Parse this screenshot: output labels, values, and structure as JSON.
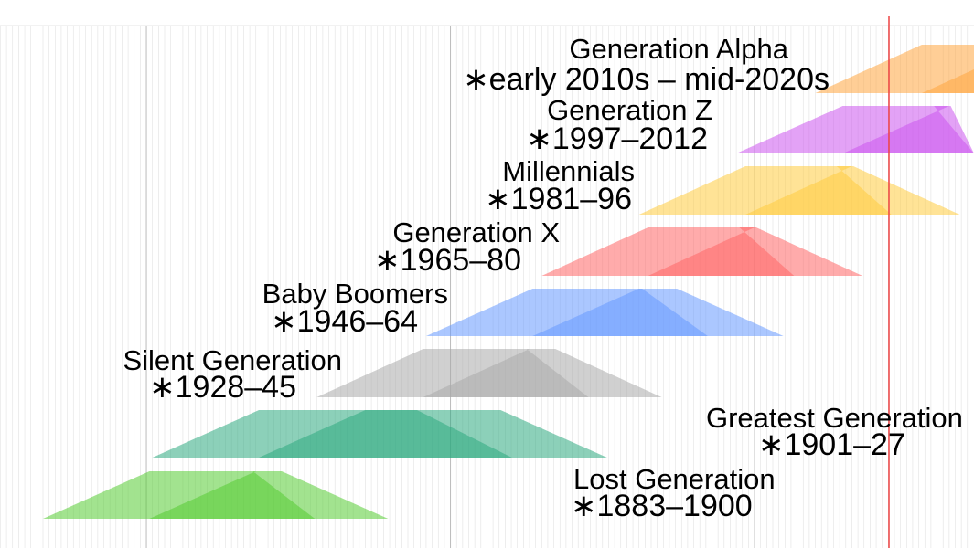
{
  "generations": [
    {
      "name": "Generation Alpha",
      "years": "∗early 2010s – mid-2020s",
      "color": "#ffa640",
      "start_year": 2010,
      "end_year": 2025
    },
    {
      "name": "Generation Z",
      "years": "∗1997–2012",
      "color": "#cc55ee",
      "start_year": 1997,
      "end_year": 2012
    },
    {
      "name": "Millennials",
      "years": "∗1981–96",
      "color": "#ffcc40",
      "start_year": 1981,
      "end_year": 1996
    },
    {
      "name": "Generation X",
      "years": "∗1965–80",
      "color": "#ff6666",
      "start_year": 1965,
      "end_year": 1980
    },
    {
      "name": "Baby Boomers",
      "years": "∗1946–64",
      "color": "#6699ff",
      "start_year": 1946,
      "end_year": 1964
    },
    {
      "name": "Silent Generation",
      "years": "∗1928–45",
      "color": "#aaaaaa",
      "start_year": 1928,
      "end_year": 1945
    },
    {
      "name": "Greatest Generation",
      "years": "∗1901–27",
      "color": "#2eaa80",
      "start_year": 1901,
      "end_year": 1927
    },
    {
      "name": "Lost Generation",
      "years": "∗1883–1900",
      "color": "#55cc33",
      "start_year": 1883,
      "end_year": 1900
    }
  ],
  "current_year_marker_color": "#ee4444"
}
